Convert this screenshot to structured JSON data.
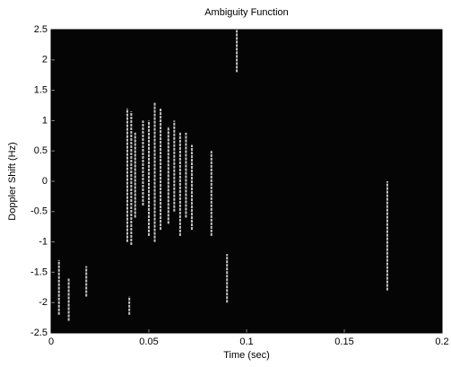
{
  "chart_data": {
    "type": "streaks",
    "title": "Ambiguity Function",
    "xlabel": "Time (sec)",
    "ylabel": "Doppler Shift (Hz)",
    "xlim": [
      0,
      0.2
    ],
    "xticks": [
      0,
      0.05,
      0.1,
      0.15,
      0.2
    ],
    "ylim": [
      -2.5,
      2.5
    ],
    "yticks": [
      -2.5,
      -2,
      -1.5,
      -1,
      -0.5,
      0,
      0.5,
      1,
      1.5,
      2,
      2.5
    ],
    "background": "#050505",
    "color": "#e8e8e8",
    "streaks": [
      {
        "x": 0.039,
        "y": [
          -1.0,
          1.2
        ]
      },
      {
        "x": 0.041,
        "y": [
          -1.05,
          1.15
        ]
      },
      {
        "x": 0.043,
        "y": [
          -0.6,
          0.8
        ]
      },
      {
        "x": 0.047,
        "y": [
          -0.4,
          1.0
        ]
      },
      {
        "x": 0.05,
        "y": [
          -0.9,
          1.0
        ]
      },
      {
        "x": 0.053,
        "y": [
          -1.0,
          1.3
        ]
      },
      {
        "x": 0.056,
        "y": [
          -0.8,
          1.2
        ]
      },
      {
        "x": 0.06,
        "y": [
          -0.7,
          0.9
        ]
      },
      {
        "x": 0.063,
        "y": [
          -0.5,
          1.0
        ]
      },
      {
        "x": 0.066,
        "y": [
          -0.9,
          0.8
        ]
      },
      {
        "x": 0.069,
        "y": [
          -0.6,
          0.8
        ]
      },
      {
        "x": 0.072,
        "y": [
          -0.8,
          0.6
        ]
      },
      {
        "x": 0.082,
        "y": [
          -0.9,
          0.5
        ]
      },
      {
        "x": 0.172,
        "y": [
          -1.8,
          0
        ]
      },
      {
        "x": 0.095,
        "y": [
          1.8,
          2.5
        ]
      },
      {
        "x": 0.004,
        "y": [
          -2.2,
          -1.3
        ]
      },
      {
        "x": 0.009,
        "y": [
          -2.3,
          -1.6
        ]
      },
      {
        "x": 0.018,
        "y": [
          -1.9,
          -1.4
        ]
      },
      {
        "x": 0.04,
        "y": [
          -2.2,
          -1.9
        ]
      },
      {
        "x": 0.09,
        "y": [
          -2.0,
          -1.2
        ]
      }
    ]
  }
}
